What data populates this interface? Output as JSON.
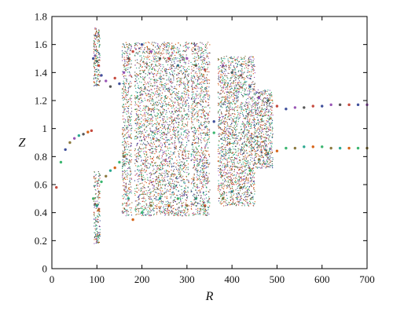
{
  "chart_data": {
    "type": "scatter",
    "title": "",
    "xlabel": "R",
    "ylabel": "Z",
    "xlim": [
      0,
      700
    ],
    "ylim": [
      0,
      1.8
    ],
    "x_ticks": [
      0,
      100,
      200,
      300,
      400,
      500,
      600,
      700
    ],
    "y_ticks": [
      0,
      0.2,
      0.4,
      0.6,
      0.8,
      1,
      1.2,
      1.4,
      1.6,
      1.8
    ],
    "x_tick_labels": [
      "0",
      "100",
      "200",
      "300",
      "400",
      "500",
      "600",
      "700"
    ],
    "y_tick_labels": [
      "0",
      "0.2",
      "0.4",
      "0.6",
      "0.8",
      "1",
      "1.2",
      "1.4",
      "1.6",
      "1.8"
    ],
    "grid": false,
    "legend": "none",
    "point_colors": [
      "#c0392b",
      "#27ae60",
      "#2c3e91",
      "#7f6a2a",
      "#8e44ad",
      "#16a085",
      "#444444",
      "#d35400"
    ],
    "series": [
      {
        "values_note": "",
        "points": [
          [
            10,
            0.58
          ],
          [
            20,
            0.76
          ],
          [
            30,
            0.85
          ],
          [
            40,
            0.9
          ],
          [
            50,
            0.93
          ],
          [
            60,
            0.95
          ],
          [
            70,
            0.96
          ],
          [
            80,
            0.975
          ],
          [
            88,
            0.985
          ],
          [
            92,
            0.5
          ],
          [
            92,
            1.5
          ],
          [
            96,
            0.46
          ],
          [
            96,
            1.52
          ],
          [
            100,
            0.45
          ],
          [
            100,
            1.48
          ],
          [
            104,
            0.42
          ],
          [
            104,
            1.45
          ],
          [
            110,
            0.62
          ],
          [
            110,
            1.38
          ],
          [
            120,
            0.66
          ],
          [
            120,
            1.34
          ],
          [
            130,
            0.7
          ],
          [
            130,
            1.3
          ],
          [
            140,
            0.72
          ],
          [
            140,
            1.36
          ],
          [
            150,
            0.76
          ],
          [
            150,
            1.32
          ],
          [
            160,
            0.8
          ],
          [
            160,
            1.4
          ],
          [
            170,
            0.5
          ],
          [
            170,
            1.5
          ],
          [
            180,
            0.35
          ],
          [
            180,
            1.55
          ],
          [
            200,
            0.4
          ],
          [
            200,
            1.6
          ],
          [
            220,
            0.45
          ],
          [
            220,
            1.55
          ],
          [
            240,
            0.5
          ],
          [
            240,
            1.5
          ],
          [
            260,
            0.45
          ],
          [
            260,
            1.5
          ],
          [
            280,
            0.5
          ],
          [
            280,
            1.45
          ],
          [
            300,
            0.45
          ],
          [
            300,
            1.5
          ],
          [
            320,
            0.5
          ],
          [
            320,
            1.45
          ],
          [
            340,
            0.45
          ],
          [
            340,
            1.42
          ],
          [
            360,
            0.97
          ],
          [
            360,
            1.05
          ],
          [
            380,
            0.5
          ],
          [
            380,
            1.45
          ],
          [
            400,
            0.55
          ],
          [
            400,
            1.4
          ],
          [
            420,
            0.58
          ],
          [
            420,
            1.38
          ],
          [
            440,
            0.7
          ],
          [
            440,
            1.3
          ],
          [
            460,
            0.78
          ],
          [
            460,
            1.22
          ],
          [
            480,
            0.82
          ],
          [
            480,
            1.2
          ],
          [
            500,
            0.84
          ],
          [
            500,
            1.16
          ],
          [
            520,
            0.86
          ],
          [
            520,
            1.14
          ],
          [
            540,
            0.86
          ],
          [
            540,
            1.15
          ],
          [
            560,
            0.87
          ],
          [
            560,
            1.15
          ],
          [
            580,
            0.87
          ],
          [
            580,
            1.16
          ],
          [
            600,
            0.87
          ],
          [
            600,
            1.16
          ],
          [
            620,
            0.86
          ],
          [
            620,
            1.17
          ],
          [
            640,
            0.86
          ],
          [
            640,
            1.17
          ],
          [
            660,
            0.86
          ],
          [
            660,
            1.17
          ],
          [
            680,
            0.86
          ],
          [
            680,
            1.17
          ],
          [
            700,
            0.86
          ],
          [
            700,
            1.17
          ]
        ]
      }
    ]
  }
}
